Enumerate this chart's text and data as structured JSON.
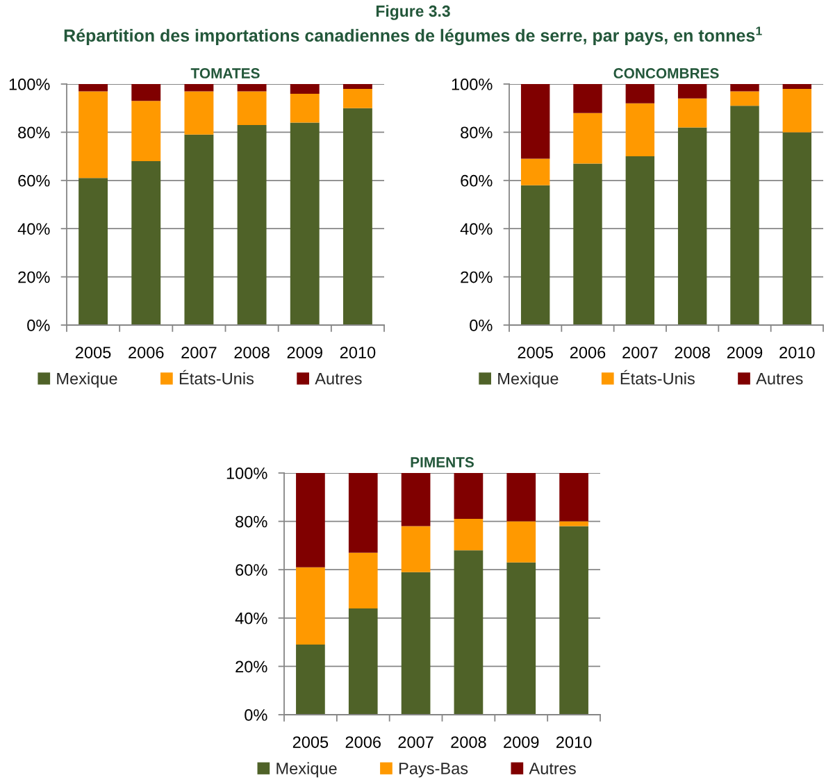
{
  "chart_data": [
    {
      "type": "other",
      "title": "Figure 3.3",
      "subtitle": "Répartition des importations canadiennes de légumes de serre, par pays, en tonnes$^{1}$"
    },
    {
      "type": "bar",
      "title": "TOMATES",
      "categories": [
        "2005",
        "2006",
        "2007",
        "2008",
        "2009",
        "2010"
      ],
      "stacked": true,
      "series": [
        {
          "name": "Mexique",
          "color": "#4f6228",
          "values": [
            61,
            68,
            79,
            83,
            84,
            90
          ]
        },
        {
          "name": "États-Unis",
          "color": "#ff9900",
          "values": [
            36,
            25,
            18,
            14,
            12,
            8
          ]
        },
        {
          "name": "Autres",
          "color": "#800000",
          "values": [
            3,
            7,
            3,
            3,
            4,
            2
          ]
        }
      ],
      "ylim": [
        0,
        100
      ],
      "yticks": [
        {
          "value": 0,
          "label": "0%"
        },
        {
          "value": 20,
          "label": "20%"
        },
        {
          "value": 40,
          "label": "40%"
        },
        {
          "value": 60,
          "label": "60%"
        },
        {
          "value": 80,
          "label": "80%"
        },
        {
          "value": 100,
          "label": "100%"
        }
      ],
      "grid": "y",
      "legend": "bottom"
    },
    {
      "type": "bar",
      "title": "CONCOMBRES",
      "categories": [
        "2005",
        "2006",
        "2007",
        "2008",
        "2009",
        "2010"
      ],
      "stacked": true,
      "series": [
        {
          "name": "Mexique",
          "color": "#4f6228",
          "values": [
            58,
            67,
            70,
            82,
            91,
            80
          ]
        },
        {
          "name": "États-Unis",
          "color": "#ff9900",
          "values": [
            11,
            21,
            22,
            12,
            6,
            18
          ]
        },
        {
          "name": "Autres",
          "color": "#800000",
          "values": [
            31,
            12,
            8,
            6,
            3,
            2
          ]
        }
      ],
      "ylim": [
        0,
        100
      ],
      "yticks": [
        {
          "value": 0,
          "label": "0%"
        },
        {
          "value": 20,
          "label": "20%"
        },
        {
          "value": 40,
          "label": "40%"
        },
        {
          "value": 60,
          "label": "60%"
        },
        {
          "value": 80,
          "label": "80%"
        },
        {
          "value": 100,
          "label": "100%"
        }
      ],
      "grid": "y",
      "legend": "bottom"
    },
    {
      "type": "bar",
      "title": "PIMENTS",
      "categories": [
        "2005",
        "2006",
        "2007",
        "2008",
        "2009",
        "2010"
      ],
      "stacked": true,
      "series": [
        {
          "name": "Mexique",
          "color": "#4f6228",
          "values": [
            29,
            44,
            59,
            68,
            63,
            78
          ]
        },
        {
          "name": "Pays-Bas",
          "color": "#ff9900",
          "values": [
            32,
            23,
            19,
            13,
            17,
            2
          ]
        },
        {
          "name": "Autres",
          "color": "#800000",
          "values": [
            39,
            33,
            22,
            19,
            20,
            20
          ]
        }
      ],
      "ylim": [
        0,
        100
      ],
      "yticks": [
        {
          "value": 0,
          "label": "0%"
        },
        {
          "value": 20,
          "label": "20%"
        },
        {
          "value": 40,
          "label": "40%"
        },
        {
          "value": 60,
          "label": "60%"
        },
        {
          "value": 80,
          "label": "80%"
        },
        {
          "value": 100,
          "label": "100%"
        }
      ],
      "grid": "y",
      "legend": "bottom"
    }
  ]
}
